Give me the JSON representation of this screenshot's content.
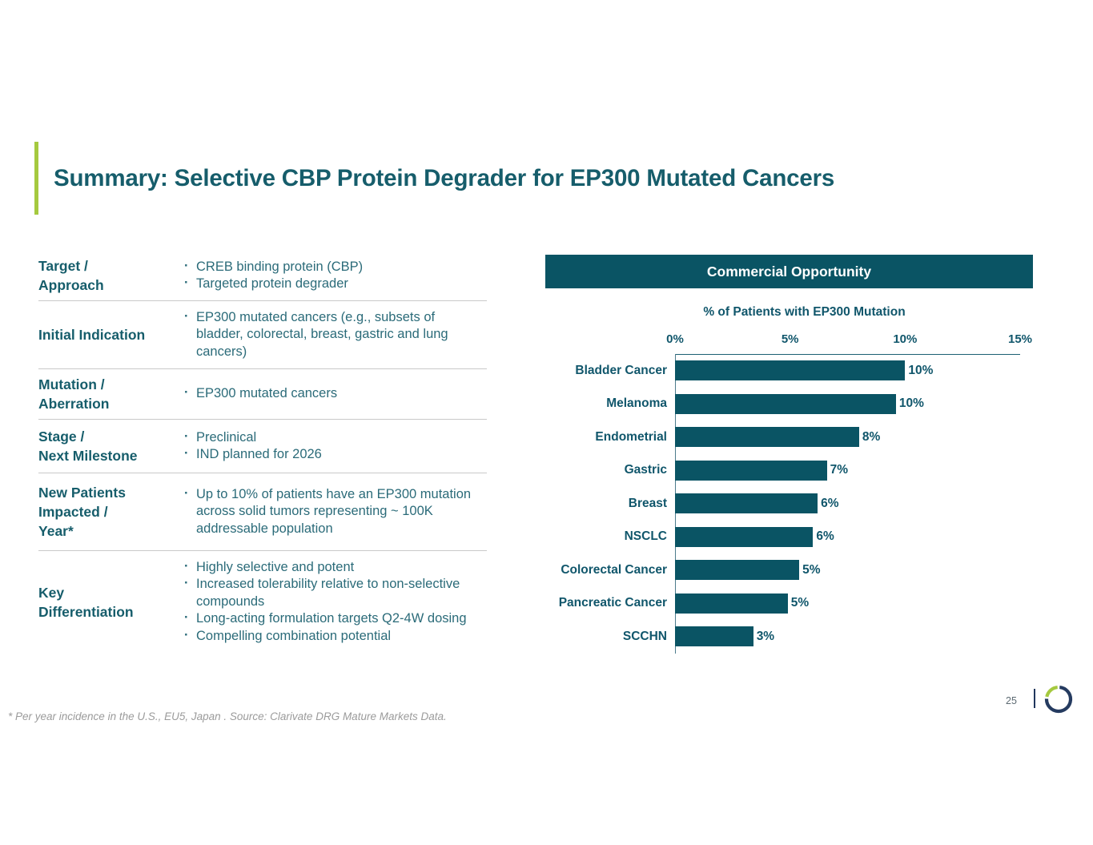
{
  "slide": {
    "title": "Summary: Selective CBP Protein Degrader for EP300 Mutated Cancers",
    "footnote": "* Per year incidence in the U.S., EU5, Japan . Source: Clarivate DRG Mature Markets Data.",
    "page_number": "25"
  },
  "colors": {
    "teal": "#0a5464",
    "teal_text": "#10566b",
    "heading_teal": "#165d6b",
    "accent_green": "#a5c93f",
    "logo_navy": "#253b60",
    "divider_gray": "#c9c9c9"
  },
  "table": {
    "rows": [
      {
        "label": "Target /\nApproach",
        "bullets": [
          "CREB binding protein (CBP)",
          "Targeted protein degrader"
        ]
      },
      {
        "label": "Initial Indication",
        "bullets": [
          "EP300 mutated cancers (e.g., subsets of\nbladder, colorectal, breast, gastric and lung\ncancers)"
        ]
      },
      {
        "label": "Mutation /\nAberration",
        "bullets": [
          "EP300 mutated cancers"
        ]
      },
      {
        "label": "Stage /\nNext Milestone",
        "bullets": [
          "Preclinical",
          "IND planned for 2026"
        ]
      },
      {
        "label": "New Patients\nImpacted /\nYear*",
        "bullets": [
          "Up to 10% of patients have an EP300 mutation\nacross solid tumors representing ~ 100K\naddressable population"
        ]
      },
      {
        "label": "Key\nDifferentiation",
        "bullets": [
          "Highly selective and potent",
          "Increased tolerability relative to non-selective\ncompounds",
          "Long-acting formulation targets Q2-4W dosing",
          "Compelling combination potential"
        ]
      }
    ]
  },
  "commercial_opportunity": {
    "header": "Commercial Opportunity"
  },
  "chart_data": {
    "type": "bar",
    "orientation": "horizontal",
    "title": "% of Patients with EP300 Mutation",
    "categories": [
      "Bladder Cancer",
      "Melanoma",
      "Endometrial",
      "Gastric",
      "Breast",
      "NSCLC",
      "Colorectal Cancer",
      "Pancreatic Cancer",
      "SCCHN"
    ],
    "values": [
      10,
      10,
      8,
      7,
      6,
      6,
      5,
      5,
      3
    ],
    "bar_values": [
      10.0,
      9.6,
      8.0,
      6.6,
      6.2,
      6.0,
      5.4,
      4.9,
      3.4
    ],
    "data_labels": [
      "10%",
      "10%",
      "8%",
      "7%",
      "6%",
      "6%",
      "5%",
      "5%",
      "3%"
    ],
    "xticks": [
      "0%",
      "5%",
      "10%",
      "15%"
    ],
    "xlim": [
      0,
      15
    ],
    "grid": false,
    "axis_position": "top",
    "bar_color": "#0a5464"
  }
}
